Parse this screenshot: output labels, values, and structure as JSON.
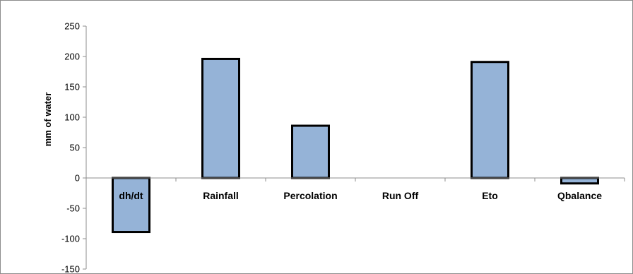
{
  "chart_data": {
    "type": "bar",
    "categories": [
      "dh/dt",
      "Rainfall",
      "Percolation",
      "Run Off",
      "Eto",
      "Qbalance"
    ],
    "values": [
      -89,
      196,
      86,
      0,
      191,
      -9
    ],
    "title": "",
    "xlabel": "",
    "ylabel": "mm of water",
    "ylim": [
      -150,
      250
    ],
    "yticks": [
      250,
      200,
      150,
      100,
      50,
      0,
      -50,
      -100,
      -150
    ],
    "grid": false,
    "legend": "none",
    "colors": {
      "bar_fill": "#95b3d7",
      "bar_stroke": "#000000",
      "axis": "#8c8c8c"
    }
  }
}
